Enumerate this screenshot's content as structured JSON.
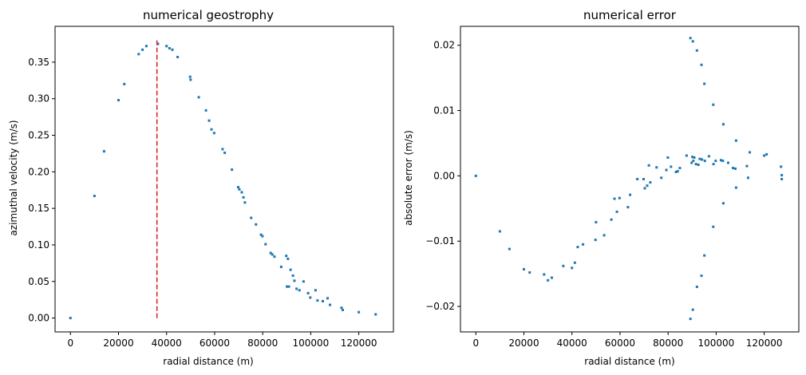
{
  "colors": {
    "series": "#1f77b4",
    "reference_line": "#d62728",
    "axes": "#000000",
    "background": "#ffffff"
  },
  "chart_data": [
    {
      "type": "scatter",
      "title": "numerical geostrophy",
      "xlabel": "radial distance (m)",
      "ylabel": "azimuthal velocity (m/s)",
      "xlim": [
        -6400,
        134400
      ],
      "ylim": [
        -0.019,
        0.399
      ],
      "xticks": [
        0,
        20000,
        40000,
        60000,
        80000,
        100000,
        120000
      ],
      "xtick_labels": [
        "0",
        "20000",
        "40000",
        "60000",
        "80000",
        "100000",
        "120000"
      ],
      "yticks": [
        0.0,
        0.05,
        0.1,
        0.15,
        0.2,
        0.25,
        0.3,
        0.35
      ],
      "ytick_labels": [
        "0.00",
        "0.05",
        "0.10",
        "0.15",
        "0.20",
        "0.25",
        "0.30",
        "0.35"
      ],
      "grid": false,
      "vertical_line": {
        "x": 36000,
        "y_range": [
          0.0,
          0.38
        ],
        "style": "dashed",
        "color": "#d62728"
      },
      "series": [
        {
          "x": [
            0,
            10000,
            14000,
            20000,
            22400,
            28400,
            30000,
            31600,
            36400,
            40000,
            41200,
            42400,
            44600,
            49800,
            50000,
            53400,
            56400,
            57700,
            58700,
            59800,
            63300,
            64200,
            67200,
            69800,
            70300,
            71300,
            72000,
            72600,
            75200,
            77200,
            79300,
            79900,
            81200,
            83300,
            84000,
            84900,
            87700,
            89800,
            90100,
            90500,
            90900,
            91600,
            92600,
            93200,
            94100,
            95300,
            97000,
            98900,
            99800,
            102000,
            102800,
            105000,
            107000,
            108000,
            112800,
            113300,
            120000,
            127000
          ],
          "y": [
            0.0,
            0.167,
            0.228,
            0.298,
            0.32,
            0.361,
            0.367,
            0.372,
            0.375,
            0.372,
            0.369,
            0.367,
            0.357,
            0.33,
            0.326,
            0.302,
            0.284,
            0.27,
            0.258,
            0.253,
            0.231,
            0.226,
            0.203,
            0.179,
            0.176,
            0.172,
            0.165,
            0.158,
            0.137,
            0.128,
            0.114,
            0.112,
            0.101,
            0.089,
            0.087,
            0.084,
            0.07,
            0.085,
            0.043,
            0.081,
            0.043,
            0.066,
            0.058,
            0.051,
            0.04,
            0.038,
            0.05,
            0.034,
            0.028,
            0.038,
            0.024,
            0.023,
            0.027,
            0.018,
            0.014,
            0.011,
            0.008,
            0.005
          ]
        }
      ]
    },
    {
      "type": "scatter",
      "title": "numerical error",
      "xlabel": "radial distance (m)",
      "ylabel": "absolute error (m/s)",
      "xlim": [
        -6400,
        134400
      ],
      "ylim": [
        -0.0239,
        0.0229
      ],
      "xticks": [
        0,
        20000,
        40000,
        60000,
        80000,
        100000,
        120000
      ],
      "xtick_labels": [
        "0",
        "20000",
        "40000",
        "60000",
        "80000",
        "100000",
        "120000"
      ],
      "yticks": [
        -0.02,
        -0.01,
        0.0,
        0.01,
        0.02
      ],
      "ytick_labels": [
        "−0.02",
        "−0.01",
        "0.00",
        "0.01",
        "0.02"
      ],
      "grid": false,
      "series": [
        {
          "x": [
            0,
            10000,
            14000,
            20000,
            22400,
            28400,
            30000,
            31600,
            36400,
            40000,
            41200,
            42400,
            44600,
            49800,
            50000,
            53400,
            56400,
            57700,
            58700,
            59800,
            63300,
            64200,
            67200,
            69800,
            70300,
            71300,
            72000,
            72600,
            75200,
            77200,
            79300,
            79900,
            81200,
            83300,
            84000,
            84900,
            87700,
            89800,
            90100,
            90500,
            90900,
            91600,
            92600,
            93200,
            94100,
            95300,
            97000,
            98900,
            99800,
            102000,
            102800,
            105000,
            107000,
            108000,
            112800,
            113300,
            120000,
            127000,
            89300,
            90300,
            92000,
            93900,
            95100,
            98800,
            103000,
            108300,
            114000,
            121000,
            127300
          ],
          "y": [
            0.0,
            -0.0085,
            -0.0112,
            -0.0143,
            -0.0148,
            -0.0151,
            -0.016,
            -0.0156,
            -0.0138,
            -0.0141,
            -0.0133,
            -0.0109,
            -0.0105,
            -0.0098,
            -0.0071,
            -0.0091,
            -0.0067,
            -0.0035,
            -0.0055,
            -0.0034,
            -0.0048,
            -0.0029,
            -0.0005,
            -0.0005,
            -0.0019,
            -0.0015,
            0.0016,
            -0.001,
            0.0013,
            -0.0003,
            0.0009,
            0.0028,
            0.0014,
            0.0006,
            0.0007,
            0.0012,
            0.0031,
            0.002,
            0.0029,
            0.0023,
            0.0028,
            0.0018,
            0.0017,
            0.0026,
            0.0025,
            0.0023,
            0.003,
            0.0018,
            0.0023,
            0.0024,
            0.0023,
            0.002,
            0.0012,
            0.0011,
            0.0015,
            -0.0003,
            0.0031,
            0.0014,
            0.0211,
            0.0206,
            0.0192,
            0.017,
            0.0141,
            0.0109,
            0.0079,
            0.0054,
            0.0036,
            0.0033,
            0.0001
          ],
          "y_extra": []
        },
        {
          "x": [
            89300,
            90300,
            92000,
            93900,
            95100,
            98800,
            103000,
            108300,
            127300
          ],
          "y": [
            -0.0219,
            -0.0205,
            -0.017,
            -0.0153,
            -0.0122,
            -0.0078,
            -0.0042,
            -0.0018,
            -0.0005
          ]
        }
      ]
    }
  ]
}
